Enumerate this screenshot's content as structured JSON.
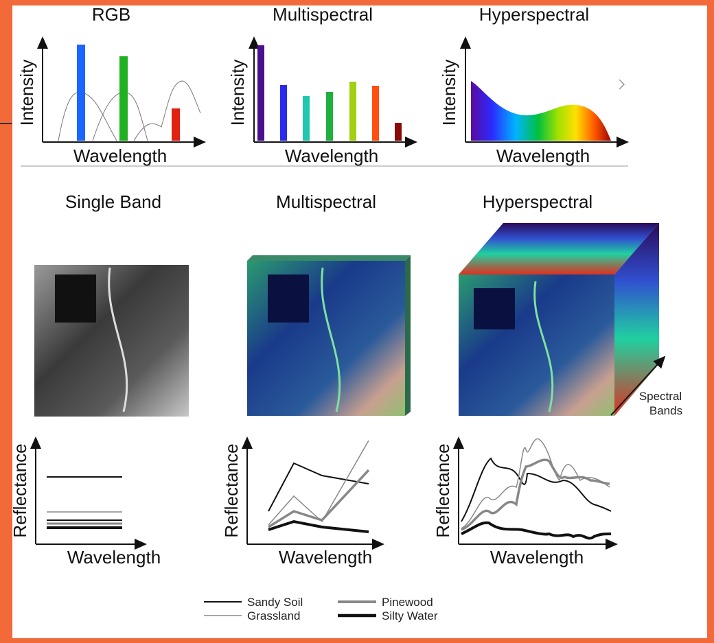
{
  "top_row": {
    "panels": [
      {
        "title": "RGB",
        "y_label": "Intensity",
        "x_label": "Wavelength"
      },
      {
        "title": "Multispectral",
        "y_label": "Intensity",
        "x_label": "Wavelength"
      },
      {
        "title": "Hyperspectral",
        "y_label": "Intensity",
        "x_label": "Wavelength"
      }
    ]
  },
  "middle_row": {
    "titles": [
      "Single Band",
      "Multispectral",
      "Hyperspectral"
    ],
    "cube_label": [
      "Spectral",
      "Bands"
    ]
  },
  "bottom_row": {
    "panels": [
      {
        "y_label": "Reflectance",
        "x_label": "Wavelength"
      },
      {
        "y_label": "Reflectance",
        "x_label": "Wavelength"
      },
      {
        "y_label": "Reflectance",
        "x_label": "Wavelength"
      }
    ]
  },
  "legend": {
    "items": [
      "Sandy Soil",
      "Grassland",
      "Pinewood",
      "Silty Water"
    ]
  }
}
